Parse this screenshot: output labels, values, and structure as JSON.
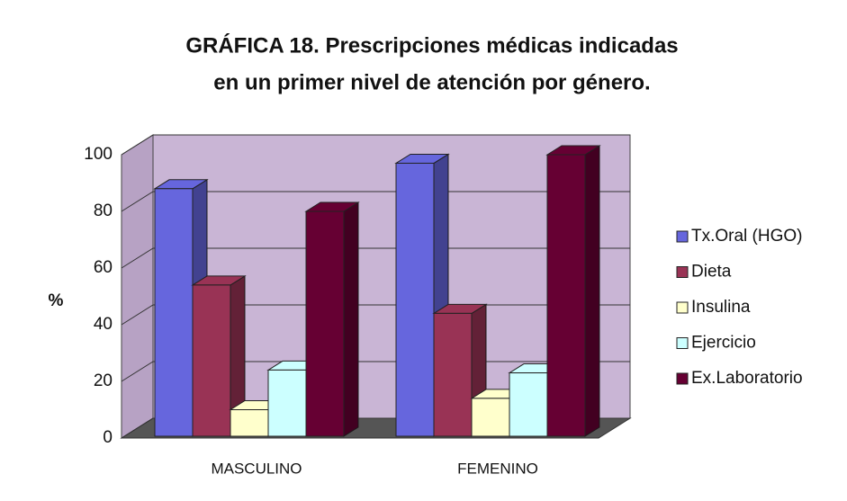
{
  "chart_data": {
    "type": "bar3d",
    "title_lines": [
      "GRÁFICA 18. Prescripciones médicas indicadas",
      "en un primer nivel de atención por género."
    ],
    "y_label": "%",
    "categories": [
      "MASCULINO",
      "FEMENINO"
    ],
    "series": [
      {
        "name": "Tx.Oral (HGO)",
        "color": "#6666dd",
        "values": [
          88,
          97
        ]
      },
      {
        "name": "Dieta",
        "color": "#993355",
        "values": [
          54,
          44
        ]
      },
      {
        "name": "Insulina",
        "color": "#ffffcc",
        "values": [
          10,
          14
        ]
      },
      {
        "name": "Ejercicio",
        "color": "#ccffff",
        "values": [
          24,
          23
        ]
      },
      {
        "name": "Ex.Laboratorio",
        "color": "#660033",
        "values": [
          80,
          100
        ]
      }
    ],
    "ylim": [
      0,
      100
    ],
    "yticks": [
      0,
      20,
      40,
      60,
      80,
      100
    ],
    "grid": true,
    "legend": "right"
  }
}
